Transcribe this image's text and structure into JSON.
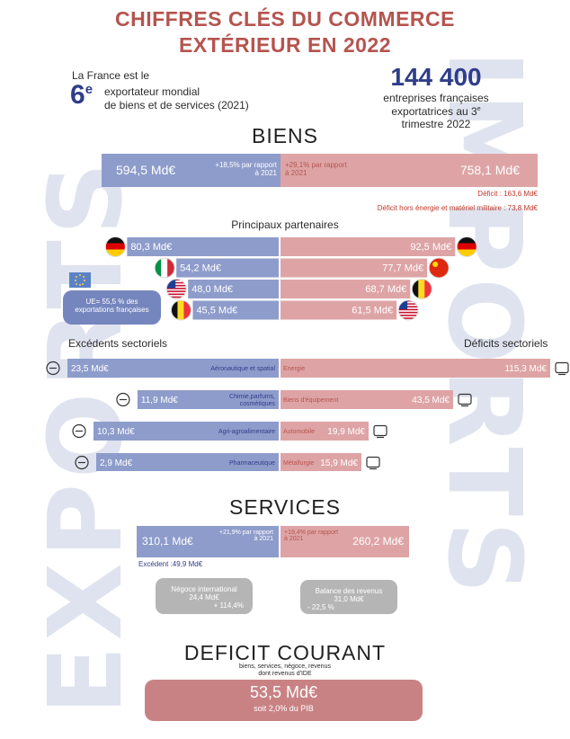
{
  "watermarks": {
    "left": "EXPORTS",
    "right": "IMPORTS"
  },
  "title": {
    "line1": "CHIFFRES CLÉS DU COMMERCE",
    "line2": "EXTÉRIEUR EN 2022"
  },
  "rank": {
    "intro": "La France est le",
    "number": "6",
    "suffix": "e",
    "line1": "exportateur mondial",
    "line2": "de biens et de services (2021)"
  },
  "companies": {
    "number": "144 400",
    "line1": "entreprises françaises",
    "line2": "exportatrices au 3",
    "sup": "e",
    "line3": "trimestre 2022"
  },
  "biens": {
    "title": "BIENS",
    "export_value": "594,5 Md€",
    "export_change_line1": "+18,5% par rapport",
    "export_change_line2": "à 2021",
    "import_value": "758,1 Md€",
    "import_change_line1": "+29,1% par rapport",
    "import_change_line2": "à 2021",
    "deficit": "Déficit : 163,6 Md€",
    "deficit_hors": "Déficit hors énergie et matériel militaire : 73,8 Md€"
  },
  "partners": {
    "title": "Principaux partenaires",
    "eu_note_line1": "UE= 55,5 % des",
    "eu_note_line2": "exportations françaises"
  },
  "sectors": {
    "surplus_title": "Excédents sectoriels",
    "deficit_title": "Déficits sectoriels"
  },
  "chart_data": [
    {
      "type": "bar",
      "title": "Principaux partenaires",
      "series": [
        {
          "name": "Exportations",
          "categories": [
            "Allemagne",
            "Italie",
            "États-Unis",
            "Belgique"
          ],
          "values": [
            80.3,
            54.2,
            48.0,
            45.5
          ],
          "labels": [
            "80,3 Md€",
            "54,2 Md€",
            "48,0 Md€",
            "45,5 Md€"
          ]
        },
        {
          "name": "Importations",
          "categories": [
            "Allemagne",
            "Chine",
            "Belgique",
            "États-Unis"
          ],
          "values": [
            92.5,
            77.7,
            68.7,
            61.5
          ],
          "labels": [
            "92,5 Md€",
            "77,7 Md€",
            "68,7 Md€",
            "61,5 Md€"
          ]
        }
      ]
    },
    {
      "type": "bar",
      "title": "Excédents sectoriels",
      "categories": [
        "Aéronautique et spatial",
        "Chimie,parfums, cosmétiques",
        "Agri-agroalimentaire",
        "Pharmaceutique"
      ],
      "values": [
        23.5,
        11.9,
        10.3,
        2.9
      ],
      "labels": [
        "23,5 Md€",
        "11,9 Md€",
        "10,3 Md€",
        "2,9 Md€"
      ]
    },
    {
      "type": "bar",
      "title": "Déficits sectoriels",
      "categories": [
        "Energie",
        "Biens d'équipement",
        "Automobile",
        "Métallurgie"
      ],
      "values": [
        115.3,
        43.5,
        19.9,
        15.9
      ],
      "labels": [
        "115,3 Md€",
        "43,5 Md€",
        "19,9 Md€",
        "15,9 Md€"
      ]
    }
  ],
  "services": {
    "title": "SERVICES",
    "export_value": "310,1 Md€",
    "export_change_line1": "+21,9% par rapport",
    "export_change_line2": "à 2021",
    "import_value": "260,2 Md€",
    "import_change_line1": "+19,4% par rapport",
    "import_change_line2": "à 2021",
    "surplus": "Excédent :49,9 Md€",
    "negoce_title": "Négoce international",
    "negoce_value": "24,4 Md€",
    "negoce_change": "+ 114,4%",
    "revenus_title": "Balance des revenus",
    "revenus_value": "31,0 Md€",
    "revenus_change": "- 22,5 %"
  },
  "courant": {
    "title": "DEFICIT COURANT",
    "sub1": "biens, services, négoce, revenus",
    "sub2": "dont revenus d'IDE",
    "value": "53,5 Md€",
    "pib": "soit 2,0% du PIB"
  }
}
